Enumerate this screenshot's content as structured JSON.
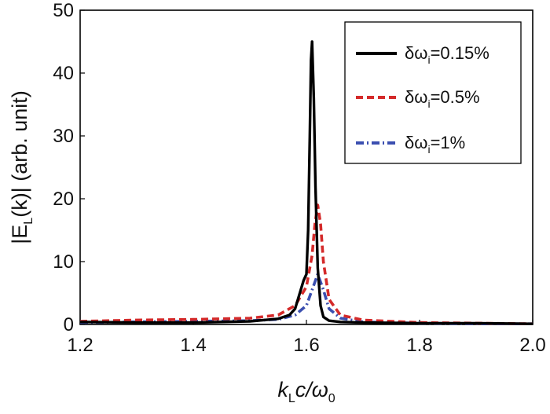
{
  "chart_data": {
    "type": "line",
    "xlim": [
      1.2,
      2.0
    ],
    "ylim": [
      0,
      50
    ],
    "xticks": [
      "1.2",
      "1.4",
      "1.6",
      "1.8",
      "2.0"
    ],
    "yticks": [
      "0",
      "10",
      "20",
      "30",
      "40",
      "50"
    ],
    "xlabel": {
      "main": "k",
      "sub": "L",
      "rest": "c/ω",
      "sub2": "0"
    },
    "ylabel": {
      "pre": "|E",
      "sub": "L",
      "mid": "(k)| (arb. unit)"
    },
    "grid": false,
    "legend_position": "top-right",
    "series": [
      {
        "name": {
          "pre": "δω",
          "sub": "i",
          "post": "=0.15%"
        },
        "color": "#000000",
        "style": "solid",
        "x": [
          1.2,
          1.3,
          1.4,
          1.5,
          1.55,
          1.57,
          1.58,
          1.59,
          1.595,
          1.6,
          1.603,
          1.606,
          1.608,
          1.61,
          1.613,
          1.616,
          1.62,
          1.625,
          1.63,
          1.64,
          1.66,
          1.7,
          1.8,
          1.9,
          2.0
        ],
        "y": [
          0.4,
          0.3,
          0.3,
          0.5,
          0.9,
          1.5,
          2.5,
          5.5,
          7,
          8,
          15,
          30,
          42,
          45,
          36,
          22,
          9,
          3,
          1.2,
          0.6,
          0.4,
          0.3,
          0.2,
          0.2,
          0.1
        ]
      },
      {
        "name": {
          "pre": "δω",
          "sub": "i",
          "post": "=0.5%"
        },
        "color": "#d42a2a",
        "style": "dashed",
        "x": [
          1.2,
          1.3,
          1.4,
          1.5,
          1.55,
          1.58,
          1.6,
          1.61,
          1.615,
          1.62,
          1.625,
          1.63,
          1.64,
          1.66,
          1.7,
          1.8,
          1.9,
          2.0
        ],
        "y": [
          0.5,
          0.7,
          0.8,
          1.0,
          1.5,
          3.0,
          6.0,
          11.0,
          16.0,
          19.0,
          16.0,
          10.0,
          4.0,
          1.5,
          0.7,
          0.3,
          0.2,
          0.1
        ]
      },
      {
        "name": {
          "pre": "δω",
          "sub": "i",
          "post": "=1%"
        },
        "color": "#3b4fb0",
        "style": "dashdot",
        "x": [
          1.2,
          1.3,
          1.4,
          1.5,
          1.55,
          1.58,
          1.6,
          1.61,
          1.62,
          1.63,
          1.64,
          1.66,
          1.7,
          1.8,
          1.9,
          2.0
        ],
        "y": [
          0.3,
          0.4,
          0.5,
          0.6,
          0.8,
          1.5,
          3.0,
          5.5,
          8.0,
          5.5,
          2.5,
          1.0,
          0.4,
          0.2,
          0.1,
          0.1
        ]
      }
    ]
  }
}
